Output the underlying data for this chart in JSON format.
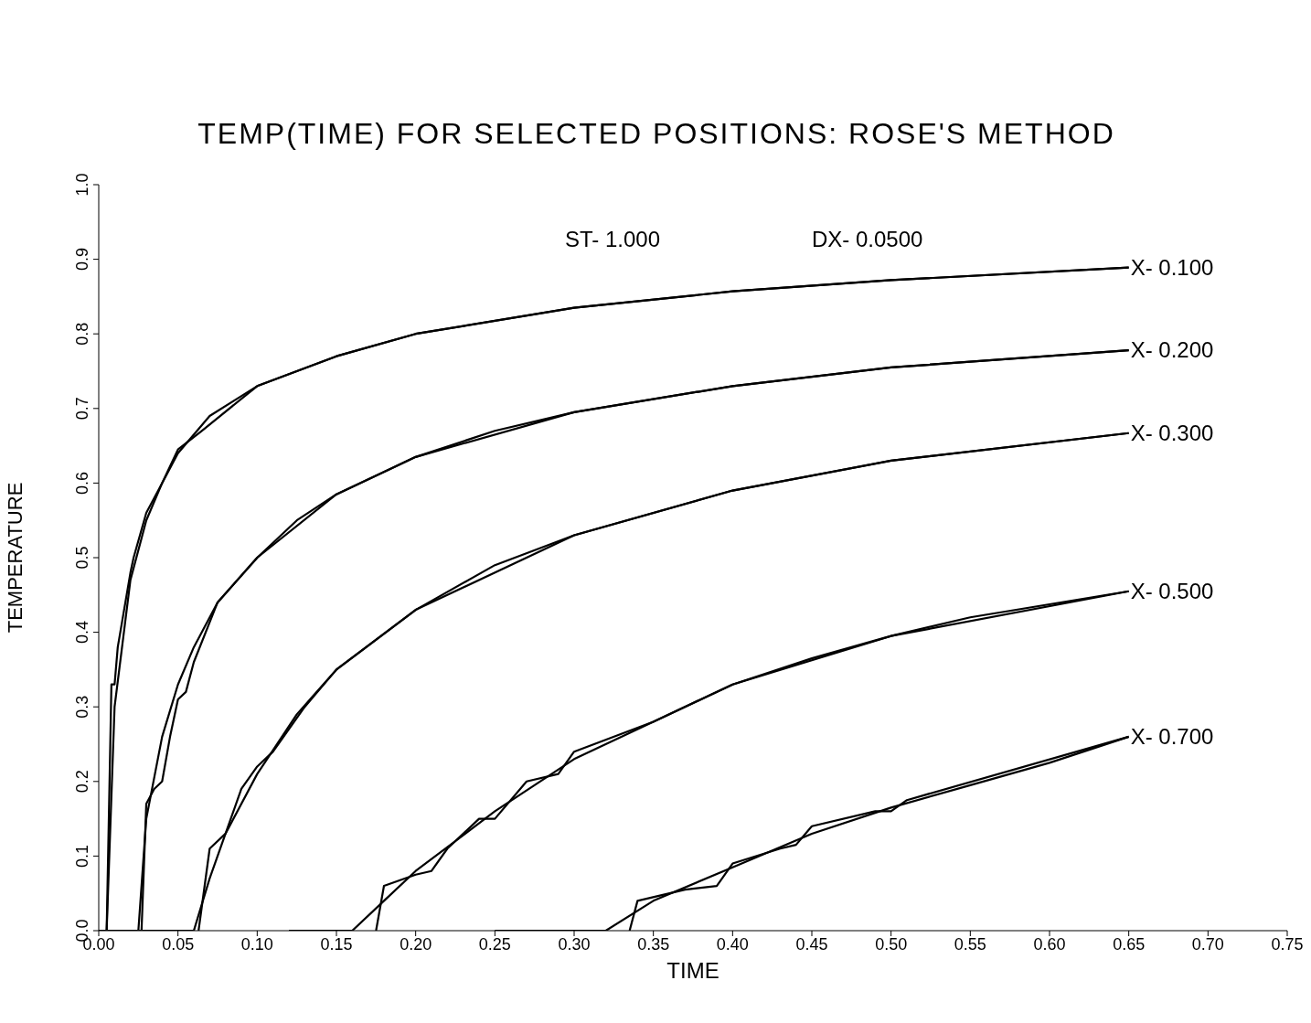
{
  "chart_data": {
    "type": "line",
    "title": "TEMP(TIME) FOR SELECTED POSITIONS: ROSE'S METHOD",
    "xlabel": "TIME",
    "ylabel": "TEMPERATURE",
    "annotations": [
      "ST- 1.000",
      "DX- 0.0500"
    ],
    "series": [
      {
        "name": "X- 0.100",
        "color": "#000000",
        "x": [
          0,
          0.005,
          0.01,
          0.02,
          0.03,
          0.04,
          0.05,
          0.07,
          0.1,
          0.15,
          0.2,
          0.3,
          0.4,
          0.5,
          0.65
        ],
        "values": [
          0,
          0,
          0.3,
          0.47,
          0.55,
          0.6,
          0.64,
          0.69,
          0.73,
          0.77,
          0.8,
          0.835,
          0.857,
          0.872,
          0.889
        ]
      },
      {
        "color": "#000000",
        "x": [
          0.005,
          0.008,
          0.01,
          0.012,
          0.02,
          0.022,
          0.03,
          0.04,
          0.05,
          0.065,
          0.1,
          0.15,
          0.2,
          0.3,
          0.4,
          0.5,
          0.65
        ],
        "values": [
          0,
          0.33,
          0.33,
          0.38,
          0.48,
          0.5,
          0.56,
          0.6,
          0.645,
          0.67,
          0.73,
          0.77,
          0.8,
          0.835,
          0.857,
          0.872,
          0.889
        ]
      },
      {
        "name": "X- 0.200",
        "color": "#000000",
        "x": [
          0,
          0.025,
          0.03,
          0.04,
          0.05,
          0.06,
          0.075,
          0.1,
          0.125,
          0.15,
          0.2,
          0.25,
          0.3,
          0.4,
          0.5,
          0.65
        ],
        "values": [
          0,
          0,
          0.15,
          0.26,
          0.33,
          0.38,
          0.44,
          0.5,
          0.55,
          0.585,
          0.635,
          0.67,
          0.695,
          0.73,
          0.755,
          0.778
        ]
      },
      {
        "color": "#000000",
        "x": [
          0.027,
          0.03,
          0.035,
          0.04,
          0.045,
          0.05,
          0.055,
          0.06,
          0.075,
          0.1,
          0.15,
          0.2,
          0.3,
          0.4,
          0.5,
          0.65
        ],
        "values": [
          0,
          0.17,
          0.19,
          0.2,
          0.26,
          0.31,
          0.32,
          0.36,
          0.44,
          0.5,
          0.585,
          0.635,
          0.695,
          0.73,
          0.755,
          0.778
        ]
      },
      {
        "name": "X- 0.300",
        "color": "#000000",
        "x": [
          0,
          0.06,
          0.07,
          0.08,
          0.1,
          0.125,
          0.15,
          0.2,
          0.25,
          0.3,
          0.4,
          0.5,
          0.65
        ],
        "values": [
          0,
          0,
          0.07,
          0.13,
          0.21,
          0.29,
          0.35,
          0.43,
          0.49,
          0.53,
          0.59,
          0.63,
          0.667
        ]
      },
      {
        "color": "#000000",
        "x": [
          0.063,
          0.07,
          0.08,
          0.09,
          0.1,
          0.11,
          0.12,
          0.13,
          0.15,
          0.2,
          0.3,
          0.4,
          0.5,
          0.65
        ],
        "values": [
          0,
          0.11,
          0.13,
          0.19,
          0.22,
          0.24,
          0.27,
          0.3,
          0.35,
          0.43,
          0.53,
          0.59,
          0.63,
          0.667
        ]
      },
      {
        "name": "X- 0.500",
        "color": "#000000",
        "x": [
          0.12,
          0.16,
          0.18,
          0.2,
          0.225,
          0.25,
          0.3,
          0.35,
          0.4,
          0.45,
          0.5,
          0.55,
          0.65
        ],
        "values": [
          0,
          0,
          0.04,
          0.08,
          0.12,
          0.16,
          0.23,
          0.28,
          0.33,
          0.365,
          0.395,
          0.42,
          0.455
        ]
      },
      {
        "color": "#000000",
        "x": [
          0.175,
          0.18,
          0.2,
          0.21,
          0.22,
          0.24,
          0.25,
          0.27,
          0.29,
          0.3,
          0.35,
          0.4,
          0.5,
          0.65
        ],
        "values": [
          0,
          0.06,
          0.075,
          0.08,
          0.11,
          0.15,
          0.15,
          0.2,
          0.21,
          0.24,
          0.28,
          0.33,
          0.395,
          0.455
        ]
      },
      {
        "name": "X- 0.700",
        "color": "#000000",
        "x": [
          0.25,
          0.32,
          0.35,
          0.4,
          0.45,
          0.5,
          0.55,
          0.6,
          0.65
        ],
        "values": [
          0,
          0,
          0.04,
          0.085,
          0.13,
          0.165,
          0.195,
          0.225,
          0.26
        ]
      },
      {
        "color": "#000000",
        "x": [
          0.335,
          0.34,
          0.37,
          0.39,
          0.4,
          0.43,
          0.44,
          0.45,
          0.49,
          0.5,
          0.51,
          0.65
        ],
        "values": [
          0,
          0.04,
          0.055,
          0.06,
          0.09,
          0.11,
          0.115,
          0.14,
          0.16,
          0.16,
          0.175,
          0.26
        ]
      }
    ],
    "xlim": [
      0,
      0.75
    ],
    "ylim": [
      0,
      1
    ],
    "xticks": [
      {
        "value": 0,
        "label": "0.00"
      },
      {
        "value": 0.05,
        "label": "0.05"
      },
      {
        "value": 0.1,
        "label": "0.10"
      },
      {
        "value": 0.15,
        "label": "0.15"
      },
      {
        "value": 0.2,
        "label": "0.20"
      },
      {
        "value": 0.25,
        "label": "0.25"
      },
      {
        "value": 0.3,
        "label": "0.30"
      },
      {
        "value": 0.35,
        "label": "0.35"
      },
      {
        "value": 0.4,
        "label": "0.40"
      },
      {
        "value": 0.45,
        "label": "0.45"
      },
      {
        "value": 0.5,
        "label": "0.50"
      },
      {
        "value": 0.55,
        "label": "0.55"
      },
      {
        "value": 0.6,
        "label": "0.60"
      },
      {
        "value": 0.65,
        "label": "0.65"
      },
      {
        "value": 0.7,
        "label": "0.70"
      },
      {
        "value": 0.75,
        "label": "0.75"
      }
    ],
    "yticks": [
      {
        "value": 0,
        "label": "0.0"
      },
      {
        "value": 0.1,
        "label": "0.1"
      },
      {
        "value": 0.2,
        "label": "0.2"
      },
      {
        "value": 0.3,
        "label": "0.3"
      },
      {
        "value": 0.4,
        "label": "0.4"
      },
      {
        "value": 0.5,
        "label": "0.5"
      },
      {
        "value": 0.6,
        "label": "0.6"
      },
      {
        "value": 0.7,
        "label": "0.7"
      },
      {
        "value": 0.8,
        "label": "0.8"
      },
      {
        "value": 0.9,
        "label": "0.9"
      },
      {
        "value": 1,
        "label": "1.0"
      }
    ],
    "grid": false,
    "legend": false,
    "marker": "none",
    "line_style": "solid"
  }
}
